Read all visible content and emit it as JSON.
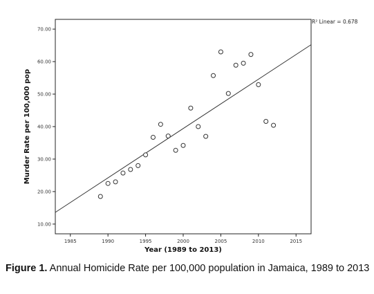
{
  "chart_data": {
    "type": "scatter",
    "title": "",
    "xlabel": "Year (1989 to 2013)",
    "ylabel": "Murder Rate per 100,000 pop",
    "xlim": [
      1983,
      2017
    ],
    "ylim": [
      7,
      73
    ],
    "x_ticks": [
      1985,
      1990,
      1995,
      2000,
      2005,
      2010,
      2015
    ],
    "y_ticks": [
      10,
      20,
      30,
      40,
      50,
      60,
      70
    ],
    "y_tick_labels": [
      "10.00",
      "20.00",
      "30.00",
      "40.00",
      "50.00",
      "60.00",
      "70.00"
    ],
    "points": [
      {
        "x": 1989,
        "y": 18.5
      },
      {
        "x": 1990,
        "y": 22.5
      },
      {
        "x": 1991,
        "y": 23.0
      },
      {
        "x": 1992,
        "y": 25.7
      },
      {
        "x": 1993,
        "y": 26.8
      },
      {
        "x": 1994,
        "y": 28.0
      },
      {
        "x": 1995,
        "y": 31.3
      },
      {
        "x": 1996,
        "y": 36.7
      },
      {
        "x": 1997,
        "y": 40.7
      },
      {
        "x": 1998,
        "y": 37.1
      },
      {
        "x": 1999,
        "y": 32.7
      },
      {
        "x": 2000,
        "y": 34.2
      },
      {
        "x": 2001,
        "y": 45.7
      },
      {
        "x": 2002,
        "y": 40.0
      },
      {
        "x": 2003,
        "y": 37.0
      },
      {
        "x": 2004,
        "y": 55.7
      },
      {
        "x": 2005,
        "y": 63.0
      },
      {
        "x": 2006,
        "y": 50.2
      },
      {
        "x": 2007,
        "y": 58.9
      },
      {
        "x": 2008,
        "y": 59.5
      },
      {
        "x": 2009,
        "y": 62.2
      },
      {
        "x": 2010,
        "y": 52.9
      },
      {
        "x": 2011,
        "y": 41.6
      },
      {
        "x": 2012,
        "y": 40.4
      }
    ],
    "fit_line": {
      "x": [
        1983,
        2017
      ],
      "y": [
        13.6,
        65.2
      ]
    },
    "fit_label": "R² Linear = 0.678",
    "grid": false,
    "legend": "none"
  },
  "caption": {
    "label": "Figure 1.",
    "text": " Annual Homicide Rate per 100,000 population in Jamaica, 1989 to 2013"
  }
}
